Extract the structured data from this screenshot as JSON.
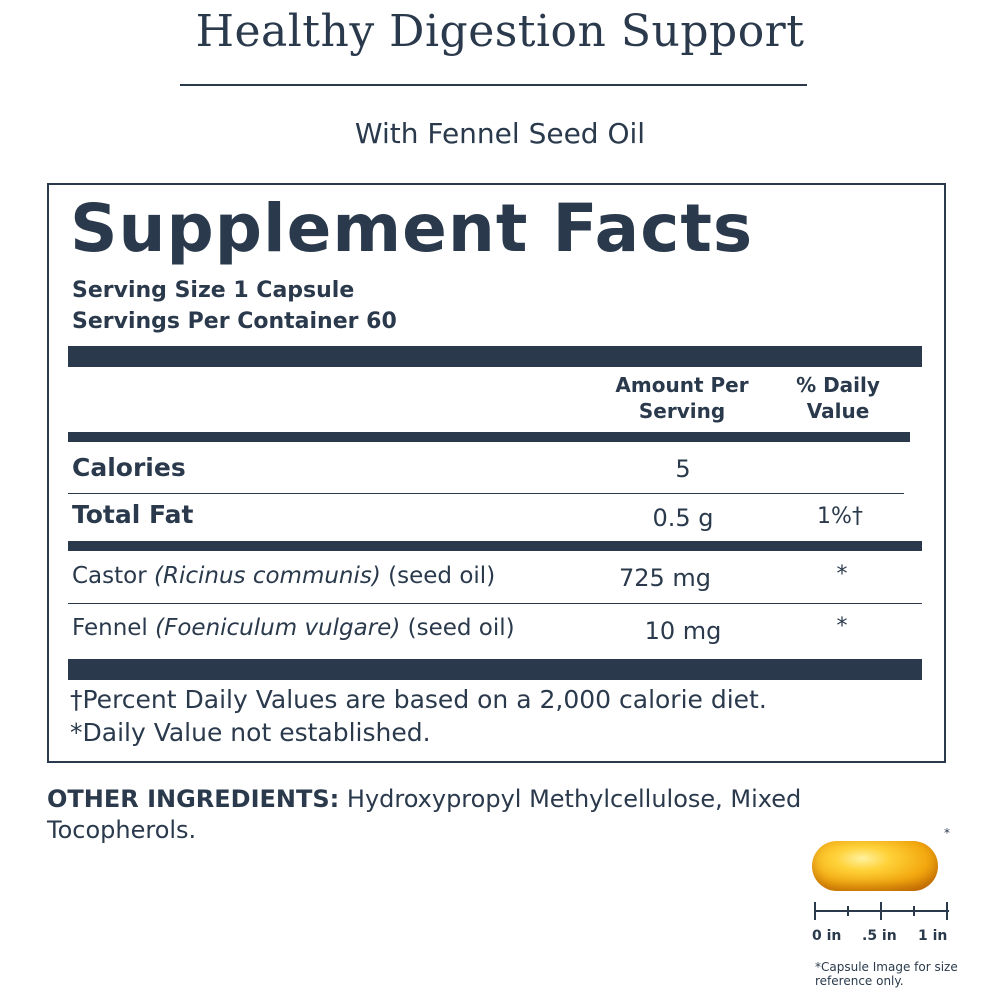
{
  "header": {
    "title": "Healthy Digestion Support",
    "subtitle": "With Fennel Seed Oil"
  },
  "facts": {
    "title": "Supplement Facts",
    "serving_size": "Serving Size 1 Capsule",
    "servings_per_container": "Servings Per Container 60",
    "col_amount_line1": "Amount Per",
    "col_amount_line2": "Serving",
    "col_dv_line1": "% Daily",
    "col_dv_line2": "Value",
    "rows": [
      {
        "label": "Calories",
        "amount": "5",
        "dv": ""
      },
      {
        "label": "Total Fat",
        "amount": "0.5 g",
        "dv": "1%†"
      },
      {
        "label_main": "Castor",
        "label_latin": "(Ricinus communis)",
        "label_suffix": "(seed oil)",
        "amount": "725 mg",
        "dv": "*"
      },
      {
        "label_main": "Fennel",
        "label_latin": "(Foeniculum vulgare)",
        "label_suffix": "(seed oil)",
        "amount": "10 mg",
        "dv": "*"
      }
    ],
    "footnote_1": "†Percent Daily Values are based on a 2,000 calorie diet.",
    "footnote_2": "*Daily Value not established."
  },
  "ingredients": {
    "label": "OTHER INGREDIENTS:",
    "text": " Hydroxypropyl Methylcellulose, Mixed Tocopherols."
  },
  "capsule": {
    "asterisk": "*",
    "ruler_labels": [
      "0 in",
      ".5 in",
      "1 in"
    ],
    "caption": "*Capsule Image for size reference only."
  }
}
